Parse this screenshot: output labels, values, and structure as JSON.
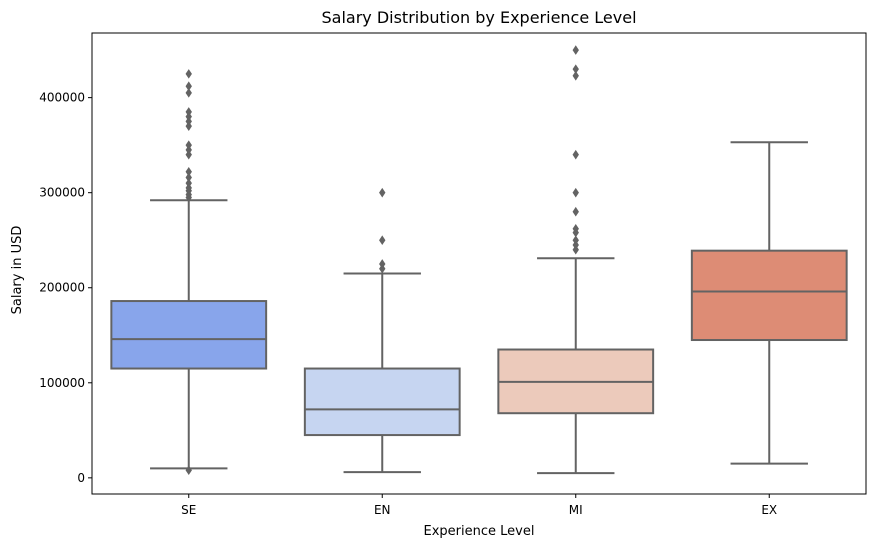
{
  "chart_data": {
    "type": "box",
    "title": "Salary Distribution by Experience Level",
    "xlabel": "Experience Level",
    "ylabel": "Salary in USD",
    "categories": [
      "SE",
      "EN",
      "MI",
      "EX"
    ],
    "ylim": [
      -17000,
      468000
    ],
    "yticks": [
      0,
      100000,
      200000,
      300000,
      400000
    ],
    "ytick_labels": [
      "0",
      "100000",
      "200000",
      "300000",
      "400000"
    ],
    "grid": false,
    "legend": "none",
    "boxes": [
      {
        "category": "SE",
        "whisker_low": 10000,
        "q1": 115000,
        "median": 146000,
        "q3": 186000,
        "whisker_high": 292000,
        "color": "#88a5eb",
        "outliers": [
          8000,
          295000,
          298000,
          302000,
          305000,
          310000,
          316000,
          322000,
          340000,
          345000,
          350000,
          370000,
          375000,
          380000,
          385000,
          405000,
          412000,
          425000
        ]
      },
      {
        "category": "EN",
        "whisker_low": 6000,
        "q1": 45000,
        "median": 72000,
        "q3": 115000,
        "whisker_high": 215000,
        "color": "#c6d5f1",
        "outliers": [
          220000,
          225000,
          250000,
          300000
        ]
      },
      {
        "category": "MI",
        "whisker_low": 5000,
        "q1": 68000,
        "median": 101000,
        "q3": 135000,
        "whisker_high": 231000,
        "color": "#eccabb",
        "outliers": [
          240000,
          245000,
          250000,
          258000,
          262000,
          280000,
          300000,
          340000,
          423000,
          430000,
          450000
        ]
      },
      {
        "category": "EX",
        "whisker_low": 15000,
        "q1": 145000,
        "median": 196000,
        "q3": 239000,
        "whisker_high": 353000,
        "color": "#dd8c75",
        "outliers": []
      }
    ]
  }
}
